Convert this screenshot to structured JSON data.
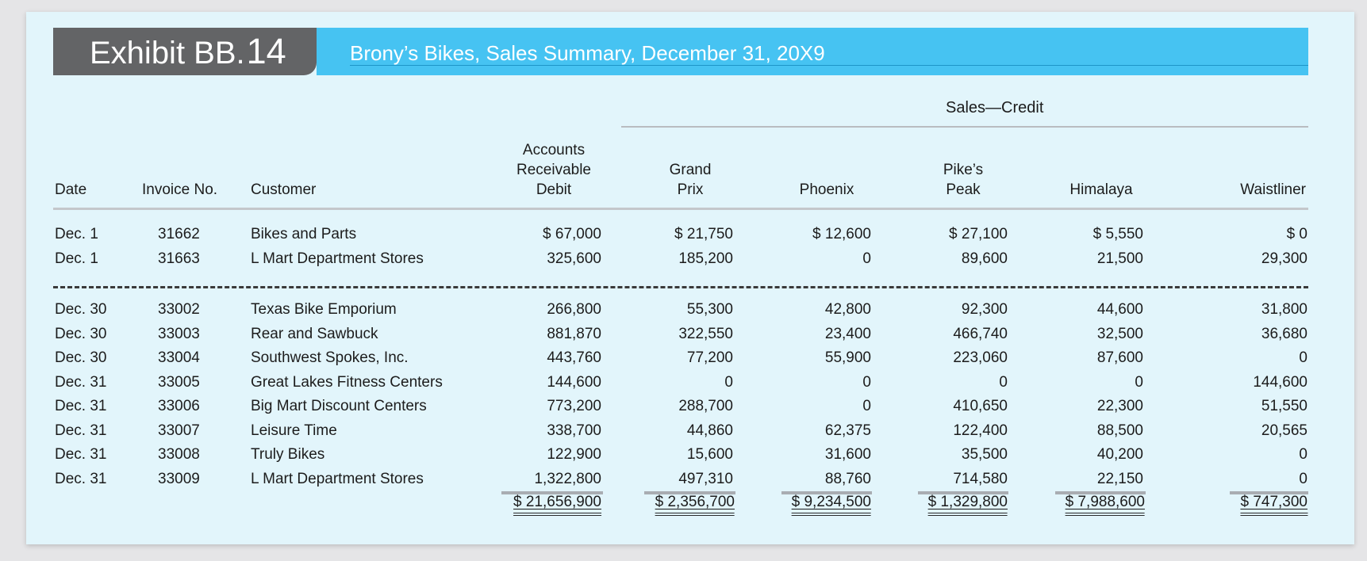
{
  "exhibit": {
    "label": "Exhibit BB.",
    "number": "14"
  },
  "title": "Brony’s Bikes, Sales Summary, December 31, 20X9",
  "group_header": "Sales—Credit",
  "headers": {
    "date": "Date",
    "invoice": "Invoice No.",
    "customer": "Customer",
    "ar": [
      "Accounts",
      "Receivable",
      "Debit"
    ],
    "grand_prix": [
      "Grand",
      "Prix"
    ],
    "phoenix": "Phoenix",
    "pikes_peak": [
      "Pike’s",
      "Peak"
    ],
    "himalaya": "Himalaya",
    "waistliner": "Waistliner"
  },
  "rows_top": [
    {
      "date": "Dec. 1",
      "invoice": "31662",
      "customer": "Bikes and Parts",
      "ar": "$ 67,000",
      "grand_prix": "$ 21,750",
      "phoenix": "$ 12,600",
      "pikes_peak": "$ 27,100",
      "himalaya": "$ 5,550",
      "waistliner": "$ 0"
    },
    {
      "date": "Dec. 1",
      "invoice": "31663",
      "customer": "L Mart Department Stores",
      "ar": "325,600",
      "grand_prix": "185,200",
      "phoenix": "0",
      "pikes_peak": "89,600",
      "himalaya": "21,500",
      "waistliner": "29,300"
    }
  ],
  "rows_bottom": [
    {
      "date": "Dec. 30",
      "invoice": "33002",
      "customer": "Texas Bike Emporium",
      "ar": "266,800",
      "grand_prix": "55,300",
      "phoenix": "42,800",
      "pikes_peak": "92,300",
      "himalaya": "44,600",
      "waistliner": "31,800"
    },
    {
      "date": "Dec. 30",
      "invoice": "33003",
      "customer": "Rear and Sawbuck",
      "ar": "881,870",
      "grand_prix": "322,550",
      "phoenix": "23,400",
      "pikes_peak": "466,740",
      "himalaya": "32,500",
      "waistliner": "36,680"
    },
    {
      "date": "Dec. 30",
      "invoice": "33004",
      "customer": "Southwest Spokes, Inc.",
      "ar": "443,760",
      "grand_prix": "77,200",
      "phoenix": "55,900",
      "pikes_peak": "223,060",
      "himalaya": "87,600",
      "waistliner": "0"
    },
    {
      "date": "Dec. 31",
      "invoice": "33005",
      "customer": "Great Lakes Fitness Centers",
      "ar": "144,600",
      "grand_prix": "0",
      "phoenix": "0",
      "pikes_peak": "0",
      "himalaya": "0",
      "waistliner": "144,600"
    },
    {
      "date": "Dec. 31",
      "invoice": "33006",
      "customer": "Big Mart Discount Centers",
      "ar": "773,200",
      "grand_prix": "288,700",
      "phoenix": "0",
      "pikes_peak": "410,650",
      "himalaya": "22,300",
      "waistliner": "51,550"
    },
    {
      "date": "Dec. 31",
      "invoice": "33007",
      "customer": "Leisure Time",
      "ar": "338,700",
      "grand_prix": "44,860",
      "phoenix": "62,375",
      "pikes_peak": "122,400",
      "himalaya": "88,500",
      "waistliner": "20,565"
    },
    {
      "date": "Dec. 31",
      "invoice": "33008",
      "customer": "Truly Bikes",
      "ar": "122,900",
      "grand_prix": "15,600",
      "phoenix": "31,600",
      "pikes_peak": "35,500",
      "himalaya": "40,200",
      "waistliner": "0"
    },
    {
      "date": "Dec. 31",
      "invoice": "33009",
      "customer": "L Mart Department Stores",
      "ar": "1,322,800",
      "grand_prix": "497,310",
      "phoenix": "88,760",
      "pikes_peak": "714,580",
      "himalaya": "22,150",
      "waistliner": "0"
    }
  ],
  "totals": {
    "ar": "$ 21,656,900",
    "grand_prix": "$ 2,356,700",
    "phoenix": "$ 9,234,500",
    "pikes_peak": "$ 1,329,800",
    "himalaya": "$ 7,988,600",
    "waistliner": "$ 747,300"
  },
  "colors": {
    "banner": "#46c3f2",
    "exhibit_tab": "#636466",
    "sheet_background": "#e2f5fb"
  }
}
